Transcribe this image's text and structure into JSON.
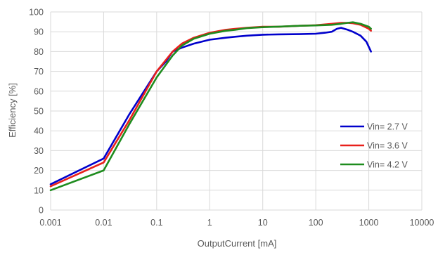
{
  "chart_data": {
    "type": "line",
    "title": "",
    "xlabel": "OutputCurrent [mA]",
    "ylabel": "Efficiency [%]",
    "xscale": "log",
    "xlim": [
      0.001,
      10000
    ],
    "ylim": [
      0,
      100
    ],
    "x_ticks": [
      "0.001",
      "0.01",
      "0.1",
      "1",
      "10",
      "100",
      "1000",
      "10000"
    ],
    "y_ticks": [
      "0",
      "10",
      "20",
      "30",
      "40",
      "50",
      "60",
      "70",
      "80",
      "90",
      "100"
    ],
    "grid": true,
    "legend_position": "right",
    "series": [
      {
        "name": "Vin= 2.7 V",
        "color": "#0000CC",
        "x": [
          0.001,
          0.01,
          0.03,
          0.1,
          0.15,
          0.2,
          0.3,
          0.5,
          1,
          2,
          3,
          5,
          10,
          20,
          50,
          100,
          150,
          200,
          250,
          300,
          400,
          500,
          700,
          900,
          1100
        ],
        "y": [
          13,
          26,
          48,
          70,
          75,
          80,
          82,
          84,
          86,
          87,
          87.5,
          88,
          88.5,
          88.7,
          88.8,
          89,
          89.5,
          90,
          91.5,
          92,
          91,
          90,
          88,
          85,
          80
        ]
      },
      {
        "name": "Vin= 3.6 V",
        "color": "#E8201B",
        "x": [
          0.001,
          0.01,
          0.03,
          0.1,
          0.2,
          0.3,
          0.5,
          1,
          2,
          3,
          5,
          10,
          20,
          50,
          100,
          200,
          300,
          400,
          500,
          700,
          1000,
          1100
        ],
        "y": [
          12,
          24,
          45,
          70,
          80,
          84,
          87,
          89.5,
          91,
          91.5,
          92,
          92.5,
          92.5,
          93,
          93.3,
          94,
          94.5,
          94.5,
          94.3,
          93.5,
          91.5,
          90.5
        ]
      },
      {
        "name": "Vin= 4.2 V",
        "color": "#1E8C1E",
        "x": [
          0.001,
          0.01,
          0.03,
          0.1,
          0.2,
          0.3,
          0.5,
          1,
          2,
          3,
          5,
          10,
          20,
          50,
          100,
          200,
          300,
          400,
          500,
          700,
          1000,
          1100
        ],
        "y": [
          10,
          20,
          43,
          67,
          78,
          83,
          86.5,
          89,
          90.5,
          91,
          91.8,
          92.3,
          92.6,
          93,
          93.2,
          93.5,
          94,
          94.5,
          94.8,
          94,
          92.5,
          91.5
        ]
      }
    ]
  }
}
